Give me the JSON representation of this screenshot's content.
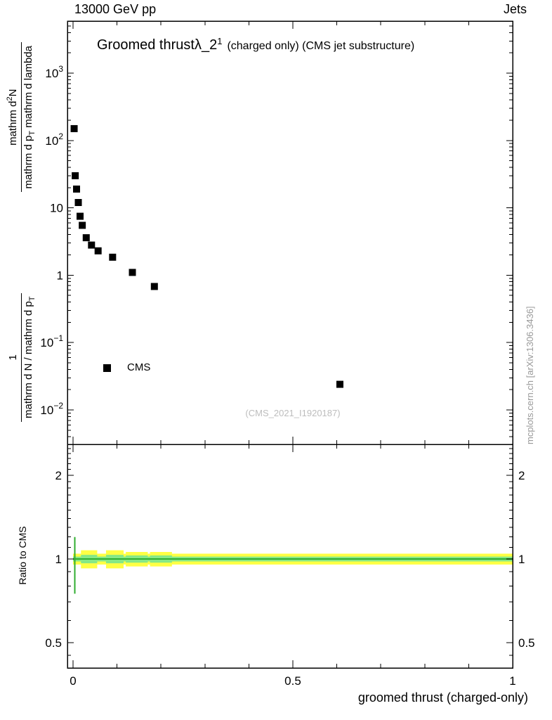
{
  "header": {
    "left": "13000 GeV pp",
    "right": "Jets"
  },
  "title": {
    "part1": "Groomed thrust",
    "lambda": "λ_2",
    "sup": "1",
    "part2": "(charged only) (CMS jet substructure)"
  },
  "legend": {
    "label": "CMS"
  },
  "watermark": "(CMS_2021_I1920187)",
  "side_note": "mcplots.cern.ch [arXiv:1306.3436]",
  "ratio_ylabel": "Ratio to CMS",
  "x_axis_label": "groomed thrust (charged-only)",
  "y_axis_title": {
    "frac1": {
      "num": "1",
      "den": "mathrm d N / mathrm d p",
      "den_sub": "T"
    },
    "frac2": {
      "num": "mathrm d",
      "num_sup": "2",
      "num_post": "N",
      "den": "mathrm d p",
      "den_sub": "T",
      "den_post": " mathrm d lambda"
    }
  },
  "chart_data": [
    {
      "type": "scatter",
      "panel": "main",
      "title": "Groomed thrust λ_2^1 (charged only) (CMS jet substructure)",
      "xlabel": "groomed thrust (charged-only)",
      "ylabel": "1 / (mathrm dN / mathrm dp_T) · mathrm d²N / (mathrm dp_T mathrm d lambda)",
      "xscale": "linear",
      "yscale": "log",
      "xlim": [
        0,
        1
      ],
      "ylim": [
        0.003,
        5000
      ],
      "x_ticks": [
        {
          "value": 0,
          "label": "0"
        },
        {
          "value": 0.5,
          "label": "0.5"
        },
        {
          "value": 1,
          "label": "1"
        }
      ],
      "y_ticks": [
        {
          "value": 1000,
          "base": "10",
          "exp": "3"
        },
        {
          "value": 100,
          "base": "10",
          "exp": "2"
        },
        {
          "value": 10,
          "base": "10",
          "exp": ""
        },
        {
          "value": 1,
          "base": "1",
          "exp": ""
        },
        {
          "value": 0.1,
          "base": "10",
          "exp": "−1"
        },
        {
          "value": 0.01,
          "base": "10",
          "exp": "−2"
        }
      ],
      "series": [
        {
          "name": "CMS",
          "marker": "filled-square",
          "color": "#000000",
          "points": [
            [
              0.0025,
              150
            ],
            [
              0.005,
              30
            ],
            [
              0.008,
              19
            ],
            [
              0.012,
              12
            ],
            [
              0.016,
              7.5
            ],
            [
              0.021,
              5.5
            ],
            [
              0.03,
              3.6
            ],
            [
              0.042,
              2.8
            ],
            [
              0.057,
              2.3
            ],
            [
              0.09,
              1.85
            ],
            [
              0.135,
              1.1
            ],
            [
              0.185,
              0.68
            ],
            [
              0.607,
              0.024
            ]
          ]
        }
      ]
    },
    {
      "type": "ratio-band",
      "panel": "ratio",
      "ylabel": "Ratio to CMS",
      "yscale": "log",
      "ylim": [
        0.4,
        2.6
      ],
      "y_ticks": [
        {
          "value": 2,
          "label": "2"
        },
        {
          "value": 1,
          "label": "1"
        },
        {
          "value": 0.5,
          "label": "0.5"
        }
      ],
      "center_line": {
        "y": 1.0
      },
      "base_band": {
        "x0": 0,
        "x1": 1,
        "yellow_hw": 0.045,
        "green_hw": 0.02
      },
      "segments": [
        {
          "x0": 0.018,
          "x1": 0.055,
          "yellow_hw": 0.075,
          "green_hw": 0.035
        },
        {
          "x0": 0.075,
          "x1": 0.115,
          "yellow_hw": 0.075,
          "green_hw": 0.035
        },
        {
          "x0": 0.12,
          "x1": 0.17,
          "yellow_hw": 0.06,
          "green_hw": 0.03
        },
        {
          "x0": 0.175,
          "x1": 0.225,
          "yellow_hw": 0.06,
          "green_hw": 0.03
        }
      ],
      "error_bar": {
        "x": 0.004,
        "y0": 0.75,
        "y1": 1.2
      },
      "colors": {
        "yellow": "#ffff44",
        "green_band": "#86e886",
        "green_line": "#2fae2f"
      }
    }
  ]
}
